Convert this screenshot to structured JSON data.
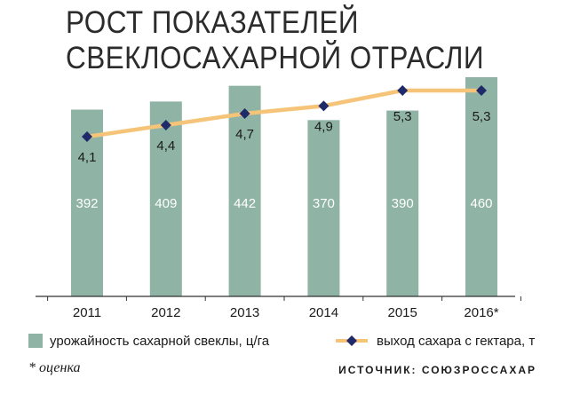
{
  "title_lines": [
    "РОСТ ПОКАЗАТЕЛЕЙ",
    "СВЕКЛОСАХАРНОЙ ОТРАСЛИ"
  ],
  "colors": {
    "bar": "#8fb3a5",
    "line": "#f6c478",
    "marker": "#1f2a6b",
    "axis": "#333333"
  },
  "chart_data": {
    "type": "bar",
    "categories": [
      "2011",
      "2012",
      "2013",
      "2014",
      "2015",
      "2016*"
    ],
    "series": [
      {
        "name": "урожайность сахарной свеклы, ц/га",
        "type": "bar",
        "values": [
          392,
          409,
          442,
          370,
          390,
          460
        ],
        "labels": [
          "392",
          "409",
          "442",
          "370",
          "390",
          "460"
        ]
      },
      {
        "name": "выход сахара с гектара, т",
        "type": "line",
        "values": [
          4.1,
          4.4,
          4.7,
          4.9,
          5.3,
          5.3
        ],
        "labels": [
          "4,1",
          "4,4",
          "4,7",
          "4,9",
          "5,3",
          "5,3"
        ]
      }
    ],
    "bar_ylim": [
      0,
      500
    ],
    "line_ylim": [
      0,
      6.2
    ]
  },
  "legend": {
    "bars": "урожайность сахарной свеклы, ц/га",
    "line": "выход сахара с гектара, т"
  },
  "footnote": "* оценка",
  "source": "ИСТОЧНИК: СОЮЗРОССАХАР"
}
